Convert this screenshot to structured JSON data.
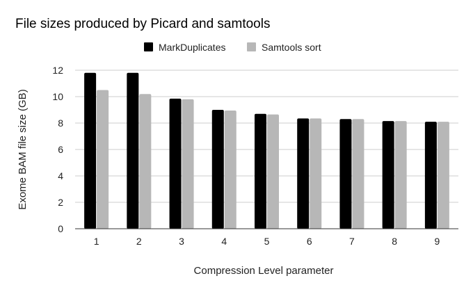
{
  "chart_data": {
    "type": "bar",
    "title": "File sizes produced by Picard and samtools",
    "xlabel": "Compression Level parameter",
    "ylabel": "Exome BAM file size (GB)",
    "categories": [
      "1",
      "2",
      "3",
      "4",
      "5",
      "6",
      "7",
      "8",
      "9"
    ],
    "series": [
      {
        "name": "MarkDuplicates",
        "color": "#000000",
        "values": [
          11.8,
          11.8,
          9.85,
          9.0,
          8.7,
          8.35,
          8.3,
          8.15,
          8.1
        ]
      },
      {
        "name": "Samtools sort",
        "color": "#b7b7b7",
        "values": [
          10.5,
          10.2,
          9.8,
          8.95,
          8.65,
          8.35,
          8.3,
          8.15,
          8.1
        ]
      }
    ],
    "yticks": [
      0,
      2,
      4,
      6,
      8,
      10,
      12
    ],
    "ylim": [
      0,
      12
    ],
    "grid": true,
    "legend_position": "top-center"
  }
}
